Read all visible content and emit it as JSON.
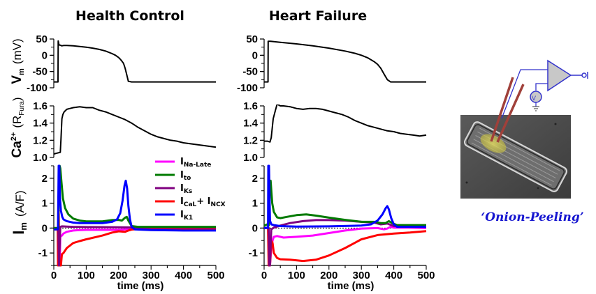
{
  "chart_data": [
    {
      "type": "line",
      "panel": "health-control-vm",
      "title": "Health Control",
      "xlabel": "",
      "ylabel": "Vm (mV)",
      "xlim": [
        0,
        500
      ],
      "ylim": [
        -100,
        50
      ],
      "yticks": [
        "50",
        "0",
        "-50",
        "-100"
      ],
      "series": [
        {
          "name": "Vm",
          "color": "#000000",
          "x": [
            0,
            13,
            13.5,
            16,
            20,
            25,
            30,
            40,
            60,
            80,
            100,
            120,
            140,
            160,
            180,
            190,
            200,
            205,
            210,
            215,
            220,
            225,
            230,
            240,
            260,
            300,
            350,
            400,
            450,
            500
          ],
          "y": [
            -82,
            -82,
            44,
            32,
            31,
            29,
            30,
            30,
            29,
            27,
            25,
            22,
            18,
            13,
            5,
            0,
            -7,
            -12,
            -18,
            -25,
            -40,
            -60,
            -80,
            -82,
            -82,
            -82,
            -82,
            -82,
            -82,
            -82
          ]
        }
      ]
    },
    {
      "type": "line",
      "panel": "heart-failure-vm",
      "title": "Heart Failure",
      "xlim": [
        0,
        500
      ],
      "ylim": [
        -100,
        50
      ],
      "yticks": [
        "50",
        "0",
        "-50",
        "-100"
      ],
      "series": [
        {
          "name": "Vm",
          "color": "#000000",
          "x": [
            0,
            12,
            12.5,
            20,
            50,
            100,
            150,
            200,
            250,
            280,
            300,
            320,
            340,
            350,
            360,
            370,
            380,
            390,
            400,
            450,
            500
          ],
          "y": [
            -82,
            -82,
            43,
            43,
            40,
            35,
            29,
            22,
            13,
            6,
            0,
            -8,
            -20,
            -28,
            -40,
            -58,
            -75,
            -82,
            -82,
            -82,
            -82
          ]
        }
      ]
    },
    {
      "type": "line",
      "panel": "health-control-ca",
      "ylabel": "Ca2+ (RFura)",
      "xlim": [
        0,
        500
      ],
      "ylim": [
        1.0,
        1.6
      ],
      "yticks": [
        "1.6",
        "1.4",
        "1.2",
        "1.0"
      ],
      "series": [
        {
          "name": "Ca2+",
          "color": "#000000",
          "x": [
            0,
            10,
            20,
            22,
            25,
            28,
            32,
            40,
            50,
            60,
            80,
            100,
            120,
            140,
            160,
            180,
            200,
            220,
            240,
            260,
            280,
            300,
            320,
            340,
            360,
            380,
            400,
            420,
            440,
            460,
            480,
            500
          ],
          "y": [
            1.04,
            1.05,
            1.06,
            1.2,
            1.45,
            1.5,
            1.53,
            1.56,
            1.57,
            1.58,
            1.59,
            1.58,
            1.58,
            1.55,
            1.53,
            1.5,
            1.47,
            1.44,
            1.4,
            1.35,
            1.31,
            1.27,
            1.24,
            1.22,
            1.2,
            1.19,
            1.17,
            1.16,
            1.15,
            1.14,
            1.13,
            1.12
          ]
        }
      ]
    },
    {
      "type": "line",
      "panel": "heart-failure-ca",
      "xlim": [
        0,
        500
      ],
      "ylim": [
        1.0,
        1.6
      ],
      "yticks": [
        "1.6",
        "1.4",
        "1.2",
        "1.0"
      ],
      "series": [
        {
          "name": "Ca2+",
          "color": "#000000",
          "x": [
            0,
            10,
            18,
            22,
            28,
            35,
            40,
            50,
            60,
            80,
            100,
            120,
            140,
            160,
            180,
            200,
            220,
            240,
            260,
            280,
            300,
            320,
            340,
            360,
            380,
            400,
            420,
            440,
            460,
            480,
            500
          ],
          "y": [
            1.19,
            1.19,
            1.18,
            1.23,
            1.45,
            1.55,
            1.62,
            1.6,
            1.6,
            1.59,
            1.57,
            1.56,
            1.57,
            1.57,
            1.56,
            1.54,
            1.52,
            1.5,
            1.47,
            1.43,
            1.4,
            1.37,
            1.35,
            1.33,
            1.31,
            1.3,
            1.28,
            1.27,
            1.26,
            1.25,
            1.26
          ]
        }
      ]
    },
    {
      "type": "line",
      "panel": "health-control-im",
      "ylabel": "Im (A/F)",
      "xlabel": "time (ms)",
      "xlim": [
        0,
        500
      ],
      "ylim": [
        -1.5,
        2.5
      ],
      "yticks": [
        "2",
        "1",
        "0",
        "-1"
      ],
      "xticks": [
        "0",
        "100",
        "200",
        "300",
        "400",
        "500"
      ],
      "legend": {
        "position": "top-right",
        "entries": [
          {
            "name": "INa-Late",
            "main": "I",
            "sub": "Na-Late",
            "color": "#ff00ff"
          },
          {
            "name": "Ito",
            "main": "I",
            "sub": "to",
            "color": "#007a00"
          },
          {
            "name": "IKs",
            "main": "I",
            "sub": "Ks",
            "color": "#800080"
          },
          {
            "name": "ICaL+ INCX",
            "main": "I",
            "sub": "CaL",
            "main2": "+ I",
            "sub2": "NCX",
            "color": "#ff0000"
          },
          {
            "name": "IK1",
            "main": "I",
            "sub": "K1",
            "color": "#0000ff"
          }
        ]
      },
      "series": [
        {
          "name": "INa-Late",
          "color": "#ff00ff",
          "x": [
            0,
            14,
            16,
            18,
            20,
            25,
            30,
            40,
            60,
            80,
            100,
            150,
            200,
            220,
            240,
            300,
            400,
            500
          ],
          "y": [
            0,
            0,
            -1.5,
            -1.5,
            -0.35,
            -0.3,
            -0.22,
            -0.15,
            -0.1,
            -0.08,
            -0.07,
            -0.07,
            -0.07,
            -0.05,
            -0.02,
            -0.02,
            -0.02,
            -0.02
          ]
        },
        {
          "name": "Ito",
          "color": "#007a00",
          "x": [
            0,
            14,
            16,
            18,
            20,
            24,
            28,
            35,
            45,
            60,
            80,
            100,
            150,
            180,
            200,
            210,
            220,
            225,
            230,
            240,
            260,
            300,
            400,
            500
          ],
          "y": [
            0,
            0,
            2.5,
            2.5,
            2.4,
            1.8,
            1.2,
            0.8,
            0.55,
            0.38,
            0.3,
            0.27,
            0.27,
            0.32,
            0.33,
            0.3,
            0.42,
            0.45,
            0.3,
            0.08,
            0.05,
            0.05,
            0.05,
            0.05
          ]
        },
        {
          "name": "IKs",
          "color": "#800080",
          "x": [
            0,
            14,
            16,
            20,
            25,
            40,
            60,
            100,
            200,
            300,
            400,
            500
          ],
          "y": [
            0,
            0,
            -1.5,
            0.05,
            0.07,
            0.06,
            0.05,
            0.04,
            0.03,
            0.02,
            0.02,
            0.02
          ]
        },
        {
          "name": "ICaL+ INCX",
          "color": "#ff0000",
          "x": [
            0,
            12,
            13,
            15,
            17,
            20,
            22,
            25,
            30,
            40,
            60,
            80,
            100,
            150,
            180,
            200,
            220,
            230,
            240,
            260,
            300,
            400,
            500
          ],
          "y": [
            -0.05,
            -0.05,
            -1.5,
            0.7,
            -1.5,
            -1.5,
            -1.5,
            -1.05,
            -1.0,
            -0.8,
            -0.6,
            -0.52,
            -0.45,
            -0.3,
            -0.18,
            -0.13,
            -0.15,
            -0.1,
            -0.06,
            -0.04,
            -0.03,
            -0.03,
            -0.03
          ]
        },
        {
          "name": "IK1",
          "color": "#0000ff",
          "x": [
            0,
            12,
            13,
            15,
            17,
            19,
            22,
            26,
            30,
            40,
            60,
            80,
            100,
            150,
            180,
            195,
            205,
            212,
            218,
            222,
            226,
            230,
            235,
            240,
            250,
            300,
            400,
            500
          ],
          "y": [
            -0.05,
            -0.05,
            0,
            2.5,
            2.5,
            1.2,
            0.7,
            0.45,
            0.35,
            0.28,
            0.22,
            0.2,
            0.2,
            0.2,
            0.25,
            0.35,
            0.6,
            1.1,
            1.7,
            1.9,
            1.6,
            0.9,
            0.35,
            0.05,
            -0.05,
            -0.08,
            -0.1,
            -0.1
          ]
        }
      ]
    },
    {
      "type": "line",
      "panel": "heart-failure-im",
      "xlabel": "time (ms)",
      "xlim": [
        0,
        500
      ],
      "ylim": [
        -1.5,
        2.5
      ],
      "yticks": [
        "2",
        "1",
        "0",
        "-1"
      ],
      "xticks": [
        "0",
        "100",
        "200",
        "300",
        "400",
        "500"
      ],
      "series": [
        {
          "name": "INa-Late",
          "color": "#ff00ff",
          "x": [
            0,
            14,
            18,
            22,
            26,
            30,
            40,
            60,
            100,
            150,
            200,
            250,
            300,
            350,
            370,
            380,
            390,
            400,
            450,
            500
          ],
          "y": [
            0,
            0,
            -1.5,
            -0.8,
            -0.5,
            -0.35,
            -0.32,
            -0.38,
            -0.35,
            -0.3,
            -0.2,
            -0.1,
            -0.02,
            0.0,
            -0.05,
            -0.02,
            0.05,
            0.02,
            0.02,
            0.0
          ]
        },
        {
          "name": "Ito",
          "color": "#007a00",
          "x": [
            0,
            10,
            14,
            18,
            20,
            25,
            30,
            40,
            50,
            70,
            100,
            130,
            160,
            200,
            250,
            300,
            340,
            360,
            375,
            385,
            395,
            410,
            450,
            500
          ],
          "y": [
            0.1,
            0.15,
            0.1,
            1.9,
            1.9,
            1.0,
            0.65,
            0.43,
            0.4,
            0.45,
            0.52,
            0.55,
            0.5,
            0.42,
            0.33,
            0.25,
            0.25,
            0.2,
            0.2,
            0.28,
            0.2,
            0.12,
            0.12,
            0.12
          ]
        },
        {
          "name": "IKs",
          "color": "#800080",
          "x": [
            0,
            14,
            16,
            18,
            22,
            30,
            50,
            80,
            120,
            160,
            200,
            250,
            300,
            340,
            360,
            380,
            400,
            450,
            500
          ],
          "y": [
            0,
            0,
            -1.5,
            -1.5,
            -0.05,
            0.02,
            0.1,
            0.2,
            0.28,
            0.32,
            0.32,
            0.3,
            0.25,
            0.22,
            0.15,
            0.18,
            0.08,
            0.05,
            0.05
          ]
        },
        {
          "name": "ICaL+ INCX",
          "color": "#ff0000",
          "x": [
            0,
            12,
            14,
            18,
            22,
            26,
            30,
            40,
            50,
            80,
            120,
            160,
            200,
            250,
            300,
            350,
            400,
            450,
            500
          ],
          "y": [
            0,
            0,
            -1.5,
            -1.5,
            -0.5,
            -0.6,
            -1.0,
            -1.2,
            -1.25,
            -1.27,
            -1.32,
            -1.27,
            -1.1,
            -0.8,
            -0.45,
            -0.28,
            -0.22,
            -0.18,
            -0.12
          ]
        },
        {
          "name": "IK1",
          "color": "#0000ff",
          "x": [
            0,
            10,
            12,
            13,
            15,
            18,
            22,
            30,
            50,
            100,
            200,
            300,
            330,
            350,
            365,
            375,
            380,
            385,
            392,
            400,
            410,
            450,
            500
          ],
          "y": [
            0,
            0.02,
            0,
            2.5,
            2.5,
            0.3,
            0.15,
            0.12,
            0.08,
            0.06,
            0.07,
            0.1,
            0.15,
            0.3,
            0.55,
            0.8,
            0.88,
            0.75,
            0.4,
            0.15,
            0.05,
            0.05,
            0.05
          ]
        }
      ]
    }
  ],
  "figure": {
    "titles": {
      "left": "Health Control",
      "right": "Heart Failure"
    },
    "ylabels": {
      "vm": {
        "main": "V",
        "sub": "m",
        "unit": "(mV)"
      },
      "ca": {
        "main": "Ca",
        "sup": "2+",
        "unit_open": "(R",
        "unit_sub": "Fura",
        "unit_close": ")"
      },
      "im": {
        "main": "I",
        "sub": "m",
        "unit": "(A/F)"
      }
    },
    "xlabel": "time (ms)"
  },
  "illustration": {
    "caption": "‘Onion-Peeling’",
    "description": "patch-clamp electrode on cardiomyocyte with amplifier circuit"
  }
}
